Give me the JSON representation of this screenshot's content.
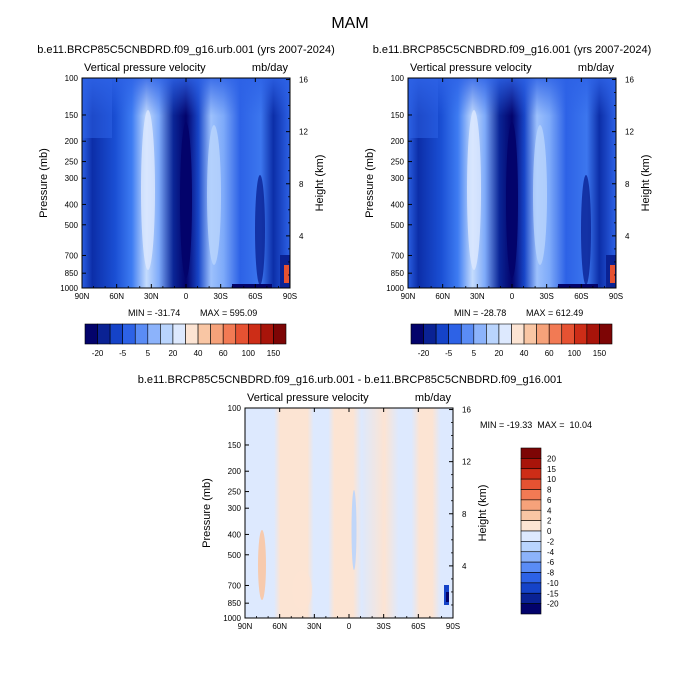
{
  "figure": {
    "title": "MAM"
  },
  "colors": {
    "abs_scale": [
      "#03036b",
      "#0a2294",
      "#1543c8",
      "#2d62e6",
      "#5a8cf5",
      "#8cb3fb",
      "#b9d4fd",
      "#dde9fe",
      "#fce4d3",
      "#f9c6a4",
      "#f6a27a",
      "#f27a54",
      "#e65232",
      "#cd2d17",
      "#a8140a",
      "#7d0505"
    ],
    "diff_scale": [
      "#03036b",
      "#0a2294",
      "#1543c8",
      "#2d62e6",
      "#5a8cf5",
      "#8cb3fb",
      "#b9d4fd",
      "#dde9fe",
      "#fce4d3",
      "#f9c6a4",
      "#f6a27a",
      "#f27a54",
      "#e65232",
      "#cd2d17",
      "#a8140a",
      "#7d0505"
    ]
  },
  "chart_data": [
    {
      "type": "heatmap",
      "title": "b.e11.BRCP85C5CNBDRD.f09_g16.urb.001 (yrs 2007-2024)",
      "left_string": "Vertical pressure velocity",
      "right_string": "mb/day",
      "ylabel": "Pressure (mb)",
      "y2label": "Height (km)",
      "x_ticks": [
        "90N",
        "60N",
        "30N",
        "0",
        "30S",
        "60S",
        "90S"
      ],
      "y_ticks": [
        "100",
        "150",
        "200",
        "250",
        "300",
        "400",
        "500",
        "700",
        "850",
        "1000"
      ],
      "y_tick_values": [
        100,
        150,
        200,
        250,
        300,
        400,
        500,
        700,
        850,
        1000
      ],
      "y2_ticks": [
        "16",
        "12",
        "8",
        "4"
      ],
      "y2_tick_values": [
        16,
        12,
        8,
        4
      ],
      "ylim": [
        1000,
        100
      ],
      "ylog": true,
      "min_label": "MIN = -31.74",
      "max_label": "MAX = 595.09",
      "colorbar_labels": [
        "-20",
        "-5",
        "5",
        "20",
        "40",
        "60",
        "100",
        "150"
      ]
    },
    {
      "type": "heatmap",
      "title": "b.e11.BRCP85C5CNBDRD.f09_g16.001 (yrs 2007-2024)",
      "left_string": "Vertical pressure velocity",
      "right_string": "mb/day",
      "ylabel": "Pressure (mb)",
      "y2label": "Height (km)",
      "x_ticks": [
        "90N",
        "60N",
        "30N",
        "0",
        "30S",
        "60S",
        "90S"
      ],
      "y_ticks": [
        "100",
        "150",
        "200",
        "250",
        "300",
        "400",
        "500",
        "700",
        "850",
        "1000"
      ],
      "y_tick_values": [
        100,
        150,
        200,
        250,
        300,
        400,
        500,
        700,
        850,
        1000
      ],
      "y2_ticks": [
        "16",
        "12",
        "8",
        "4"
      ],
      "y2_tick_values": [
        16,
        12,
        8,
        4
      ],
      "ylim": [
        1000,
        100
      ],
      "ylog": true,
      "min_label": "MIN = -28.78",
      "max_label": "MAX = 612.49",
      "colorbar_labels": [
        "-20",
        "-5",
        "5",
        "20",
        "40",
        "60",
        "100",
        "150"
      ]
    },
    {
      "type": "heatmap",
      "title": "b.e11.BRCP85C5CNBDRD.f09_g16.urb.001 - b.e11.BRCP85C5CNBDRD.f09_g16.001",
      "left_string": "Vertical pressure velocity",
      "right_string": "mb/day",
      "ylabel": "Pressure (mb)",
      "y2label": "Height (km)",
      "x_ticks": [
        "90N",
        "60N",
        "30N",
        "0",
        "30S",
        "60S",
        "90S"
      ],
      "y_ticks": [
        "100",
        "150",
        "200",
        "250",
        "300",
        "400",
        "500",
        "700",
        "850",
        "1000"
      ],
      "y_tick_values": [
        100,
        150,
        200,
        250,
        300,
        400,
        500,
        700,
        850,
        1000
      ],
      "y2_ticks": [
        "16",
        "12",
        "8",
        "4"
      ],
      "y2_tick_values": [
        16,
        12,
        8,
        4
      ],
      "ylim": [
        1000,
        100
      ],
      "ylog": true,
      "minmax_label": "MIN = -19.33  MAX =  10.04",
      "colorbar_labels": [
        "20",
        "15",
        "10",
        "8",
        "6",
        "4",
        "2",
        "0",
        "-2",
        "-4",
        "-6",
        "-8",
        "-10",
        "-15",
        "-20"
      ]
    }
  ]
}
